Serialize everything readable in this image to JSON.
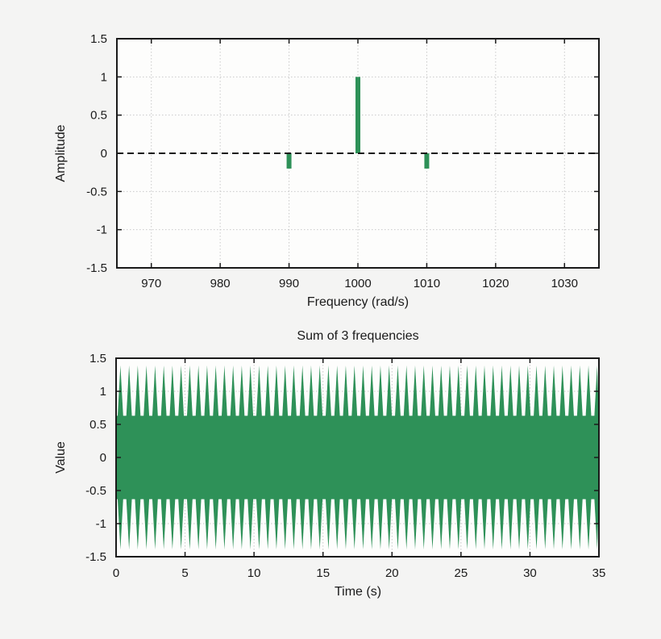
{
  "figure": {
    "background_color": "#f4f4f3",
    "plot_background_color": "#fdfdfc",
    "frame_color": "#1a1a1a",
    "grid_color": "#c9c9c9",
    "accent_green": "#2e9158"
  },
  "chart_data": [
    {
      "type": "bar",
      "title": "",
      "xlabel": "Frequency (rad/s)",
      "ylabel": "Amplitude",
      "xlim": [
        965,
        1035
      ],
      "ylim": [
        -1.5,
        1.5
      ],
      "xticks": [
        970,
        980,
        990,
        1000,
        1010,
        1020,
        1030
      ],
      "yticks": [
        -1.5,
        -1,
        -0.5,
        0,
        0.5,
        1,
        1.5
      ],
      "grid": true,
      "legend": false,
      "zero_line": {
        "style": "dashed",
        "color": "#1a1a1a",
        "y": 0
      },
      "bars": [
        {
          "x": 990,
          "y": -0.2
        },
        {
          "x": 1000,
          "y": 1.0
        },
        {
          "x": 1010,
          "y": -0.2
        }
      ],
      "bar_color": "#2e9158"
    },
    {
      "type": "area",
      "title": "Sum of 3 frequencies",
      "xlabel": "Time (s)",
      "ylabel": "Value",
      "xlim": [
        0,
        35
      ],
      "ylim": [
        -1.5,
        1.5
      ],
      "xticks": [
        0,
        5,
        10,
        15,
        20,
        25,
        30,
        35
      ],
      "yticks": [
        -1.5,
        -1,
        -0.5,
        0,
        0.5,
        1,
        1.5
      ],
      "grid": true,
      "legend": false,
      "line_color": "#2e9158",
      "signal": {
        "description": "sum of three sinusoids producing a beat pattern",
        "components": [
          {
            "freq_rad_s": 990,
            "amplitude": -0.2
          },
          {
            "freq_rad_s": 1000,
            "amplitude": 1.0
          },
          {
            "freq_rad_s": 1010,
            "amplitude": -0.2
          }
        ],
        "beat_freq_rad_s": 10,
        "beat_period_s": 0.6283,
        "envelope_min": 0.6,
        "envelope_max": 1.4
      }
    }
  ]
}
